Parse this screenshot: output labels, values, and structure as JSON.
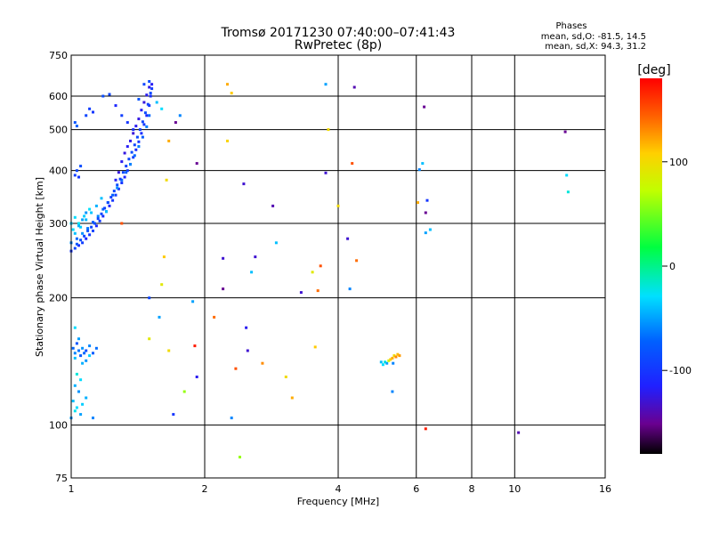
{
  "chart_data": {
    "type": "scatter",
    "title": "Tromsø 20171230 07:40:00–07:41:43",
    "subtitle": "RwPretec (8p)",
    "stats": {
      "heading": "Phases",
      "line1": "mean, sd,O: -81.5, 14.5",
      "line2": "mean, sd,X:  94.3, 31.2"
    },
    "xlabel": "Frequency [MHz]",
    "ylabel": "Stationary phase Virtual Height [km]",
    "x_scale": "log",
    "y_scale": "log",
    "xlim": [
      1,
      16
    ],
    "ylim": [
      75,
      750
    ],
    "x_ticks": [
      1,
      2,
      4,
      6,
      8,
      10,
      16
    ],
    "x_tick_labels": [
      "1",
      "2",
      "4",
      "6",
      "8",
      "10",
      "16"
    ],
    "y_ticks": [
      75,
      100,
      200,
      300,
      400,
      500,
      600,
      750
    ],
    "y_tick_labels": [
      "75",
      "100",
      "200",
      "300",
      "400",
      "500",
      "600",
      "750"
    ],
    "grid": true,
    "colorbar": {
      "label": "[deg]",
      "range": [
        -180,
        180
      ],
      "ticks": [
        100,
        0,
        -100
      ],
      "tick_labels": [
        "100",
        "0",
        "-100"
      ]
    },
    "series": [
      {
        "points": [
          [
            1.0,
            258,
            -100
          ],
          [
            1.02,
            262,
            -90
          ],
          [
            1.04,
            266,
            -105
          ],
          [
            1.06,
            270,
            -95
          ],
          [
            1.08,
            276,
            -110
          ],
          [
            1.1,
            282,
            -100
          ],
          [
            1.12,
            288,
            -92
          ],
          [
            1.14,
            296,
            -108
          ],
          [
            1.16,
            304,
            -98
          ],
          [
            1.18,
            312,
            -104
          ],
          [
            1.2,
            320,
            -96
          ],
          [
            1.22,
            330,
            -110
          ],
          [
            1.24,
            340,
            -100
          ],
          [
            1.26,
            350,
            -94
          ],
          [
            1.28,
            362,
            -106
          ],
          [
            1.3,
            374,
            -100
          ],
          [
            1.32,
            386,
            -112
          ],
          [
            1.34,
            400,
            -98
          ],
          [
            1.36,
            414,
            -104
          ],
          [
            1.38,
            430,
            -96
          ],
          [
            1.4,
            448,
            -108
          ],
          [
            1.42,
            468,
            -100
          ],
          [
            1.44,
            490,
            -105
          ],
          [
            1.46,
            514,
            -98
          ],
          [
            1.48,
            540,
            -110
          ],
          [
            1.5,
            570,
            -100
          ],
          [
            1.51,
            600,
            -104
          ],
          [
            1.52,
            625,
            -96
          ],
          [
            1.0,
            270,
            -60
          ],
          [
            1.03,
            276,
            -70
          ],
          [
            1.06,
            284,
            -55
          ],
          [
            1.09,
            292,
            -65
          ],
          [
            1.12,
            302,
            -75
          ],
          [
            1.15,
            312,
            -60
          ],
          [
            1.18,
            324,
            -70
          ],
          [
            1.21,
            336,
            -62
          ],
          [
            1.24,
            350,
            -72
          ],
          [
            1.27,
            364,
            -58
          ],
          [
            1.3,
            380,
            -68
          ],
          [
            1.33,
            396,
            -74
          ],
          [
            1.36,
            414,
            -60
          ],
          [
            1.39,
            434,
            -70
          ],
          [
            1.42,
            456,
            -64
          ],
          [
            1.45,
            480,
            -76
          ],
          [
            1.48,
            508,
            -62
          ],
          [
            1.5,
            540,
            -70
          ],
          [
            1.01,
            290,
            -30
          ],
          [
            1.04,
            300,
            -25
          ],
          [
            1.07,
            312,
            -35
          ],
          [
            1.1,
            324,
            -28
          ],
          [
            1.02,
            284,
            -40
          ],
          [
            1.05,
            294,
            -35
          ],
          [
            1.08,
            306,
            -42
          ],
          [
            1.11,
            318,
            -38
          ],
          [
            1.14,
            330,
            -45
          ],
          [
            1.17,
            344,
            -40
          ],
          [
            1.0,
            300,
            -35
          ],
          [
            1.02,
            310,
            -30
          ],
          [
            1.04,
            296,
            -45
          ],
          [
            1.06,
            306,
            -50
          ],
          [
            1.08,
            318,
            -55
          ],
          [
            1.03,
            268,
            -80
          ],
          [
            1.05,
            274,
            -85
          ],
          [
            1.07,
            280,
            -90
          ],
          [
            1.09,
            288,
            -82
          ],
          [
            1.11,
            294,
            -88
          ],
          [
            1.13,
            300,
            -84
          ],
          [
            1.15,
            308,
            -90
          ],
          [
            1.17,
            316,
            -86
          ],
          [
            1.19,
            326,
            -92
          ],
          [
            1.21,
            336,
            -88
          ],
          [
            1.23,
            346,
            -94
          ],
          [
            1.25,
            358,
            -90
          ],
          [
            1.27,
            370,
            -86
          ],
          [
            1.29,
            382,
            -92
          ],
          [
            1.31,
            396,
            -88
          ],
          [
            1.33,
            410,
            -94
          ],
          [
            1.35,
            426,
            -90
          ],
          [
            1.37,
            442,
            -86
          ],
          [
            1.39,
            460,
            -92
          ],
          [
            1.41,
            480,
            -88
          ],
          [
            1.43,
            500,
            -94
          ],
          [
            1.45,
            522,
            -90
          ],
          [
            1.47,
            548,
            -86
          ],
          [
            1.49,
            574,
            -92
          ],
          [
            1.51,
            610,
            -88
          ],
          [
            1.3,
            420,
            -120
          ],
          [
            1.32,
            440,
            -125
          ],
          [
            1.34,
            456,
            -118
          ],
          [
            1.36,
            470,
            -122
          ],
          [
            1.38,
            490,
            -128
          ],
          [
            1.4,
            510,
            -120
          ],
          [
            1.42,
            530,
            -124
          ],
          [
            1.44,
            556,
            -118
          ],
          [
            1.46,
            580,
            -126
          ],
          [
            1.48,
            604,
            -120
          ],
          [
            1.5,
            630,
            -122
          ],
          [
            1.52,
            640,
            -118
          ],
          [
            1.28,
            396,
            -125
          ],
          [
            1.26,
            380,
            -118
          ],
          [
            1.02,
            390,
            -95
          ],
          [
            1.03,
            400,
            -90
          ],
          [
            1.04,
            386,
            -100
          ],
          [
            1.05,
            410,
            -85
          ],
          [
            1.02,
            520,
            -80
          ],
          [
            1.03,
            510,
            -75
          ],
          [
            1.08,
            540,
            -90
          ],
          [
            1.1,
            560,
            -95
          ],
          [
            1.12,
            550,
            -100
          ],
          [
            1.18,
            600,
            -85
          ],
          [
            1.22,
            606,
            -90
          ],
          [
            1.26,
            570,
            -110
          ],
          [
            1.3,
            540,
            -95
          ],
          [
            1.34,
            520,
            -100
          ],
          [
            1.38,
            500,
            -105
          ],
          [
            1.42,
            590,
            -80
          ],
          [
            1.46,
            640,
            -90
          ],
          [
            1.5,
            650,
            -85
          ],
          [
            1.56,
            580,
            -40
          ],
          [
            1.6,
            560,
            -30
          ],
          [
            1.01,
            152,
            -70
          ],
          [
            1.02,
            148,
            -60
          ],
          [
            1.03,
            156,
            -80
          ],
          [
            1.04,
            150,
            -65
          ],
          [
            1.05,
            146,
            -75
          ],
          [
            1.06,
            152,
            -55
          ],
          [
            1.07,
            148,
            -70
          ],
          [
            1.08,
            150,
            -85
          ],
          [
            1.1,
            154,
            -60
          ],
          [
            1.12,
            148,
            -75
          ],
          [
            1.14,
            152,
            -68
          ],
          [
            1.02,
            144,
            -40
          ],
          [
            1.04,
            160,
            -50
          ],
          [
            1.06,
            140,
            -45
          ],
          [
            1.08,
            142,
            -55
          ],
          [
            1.1,
            146,
            -35
          ],
          [
            1.03,
            132,
            -20
          ],
          [
            1.05,
            128,
            -30
          ],
          [
            1.02,
            124,
            -45
          ],
          [
            1.04,
            120,
            -55
          ],
          [
            1.01,
            114,
            -40
          ],
          [
            1.03,
            110,
            -30
          ],
          [
            1.05,
            106,
            -50
          ],
          [
            1.02,
            108,
            -25
          ],
          [
            1.06,
            112,
            -35
          ],
          [
            1.08,
            116,
            -45
          ],
          [
            1.0,
            104,
            -55
          ],
          [
            1.12,
            104,
            -60
          ],
          [
            1.02,
            170,
            -30
          ],
          [
            5.0,
            141,
            -40
          ],
          [
            5.05,
            139,
            -30
          ],
          [
            5.1,
            141,
            -20
          ],
          [
            5.15,
            140,
            -50
          ],
          [
            5.2,
            142,
            80
          ],
          [
            5.25,
            143,
            110
          ],
          [
            5.3,
            144,
            120
          ],
          [
            5.35,
            146,
            100
          ],
          [
            5.4,
            145,
            130
          ],
          [
            5.45,
            147,
            115
          ],
          [
            5.5,
            146,
            125
          ],
          [
            5.32,
            140,
            -60
          ],
          [
            1.5,
            200,
            -90
          ],
          [
            1.7,
            106,
            -100
          ],
          [
            1.88,
            196,
            -50
          ],
          [
            1.9,
            154,
            170
          ],
          [
            1.92,
            416,
            -150
          ],
          [
            1.92,
            130,
            -120
          ],
          [
            2.1,
            180,
            140
          ],
          [
            2.2,
            248,
            -130
          ],
          [
            2.2,
            210,
            -150
          ],
          [
            2.25,
            640,
            120
          ],
          [
            2.3,
            610,
            110
          ],
          [
            2.25,
            470,
            105
          ],
          [
            2.3,
            104,
            -60
          ],
          [
            2.35,
            136,
            150
          ],
          [
            2.4,
            84,
            60
          ],
          [
            2.45,
            372,
            -130
          ],
          [
            2.48,
            170,
            -120
          ],
          [
            2.5,
            150,
            -130
          ],
          [
            2.55,
            230,
            -40
          ],
          [
            2.6,
            250,
            -130
          ],
          [
            2.7,
            140,
            130
          ],
          [
            2.85,
            330,
            -140
          ],
          [
            2.9,
            270,
            -40
          ],
          [
            3.05,
            130,
            100
          ],
          [
            3.15,
            116,
            120
          ],
          [
            3.3,
            206,
            -130
          ],
          [
            3.5,
            230,
            90
          ],
          [
            3.55,
            153,
            110
          ],
          [
            3.6,
            208,
            140
          ],
          [
            3.65,
            238,
            150
          ],
          [
            3.75,
            395,
            -130
          ],
          [
            3.75,
            640,
            -50
          ],
          [
            3.8,
            500,
            100
          ],
          [
            4.0,
            330,
            100
          ],
          [
            4.2,
            276,
            -130
          ],
          [
            4.25,
            210,
            -60
          ],
          [
            4.3,
            416,
            150
          ],
          [
            4.35,
            630,
            -140
          ],
          [
            4.4,
            245,
            140
          ],
          [
            5.3,
            120,
            -60
          ],
          [
            6.05,
            336,
            120
          ],
          [
            6.1,
            402,
            -60
          ],
          [
            6.2,
            416,
            -40
          ],
          [
            6.25,
            566,
            -150
          ],
          [
            6.3,
            318,
            -150
          ],
          [
            6.3,
            285,
            -50
          ],
          [
            6.35,
            340,
            -100
          ],
          [
            6.45,
            290,
            -40
          ],
          [
            6.3,
            98,
            170
          ],
          [
            10.2,
            96,
            -140
          ],
          [
            13.0,
            494,
            -150
          ],
          [
            13.1,
            390,
            -30
          ],
          [
            13.2,
            356,
            -20
          ],
          [
            1.6,
            215,
            90
          ],
          [
            1.62,
            250,
            110
          ],
          [
            1.64,
            380,
            100
          ],
          [
            1.66,
            470,
            120
          ],
          [
            1.58,
            180,
            -50
          ],
          [
            1.66,
            150,
            100
          ],
          [
            1.72,
            520,
            -150
          ],
          [
            1.76,
            540,
            -60
          ],
          [
            1.8,
            120,
            60
          ],
          [
            1.5,
            160,
            90
          ],
          [
            1.3,
            300,
            150
          ],
          [
            1.2,
            320,
            -40
          ]
        ]
      }
    ]
  }
}
